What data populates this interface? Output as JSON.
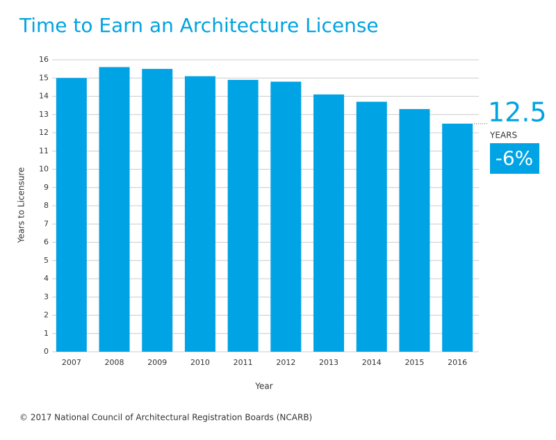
{
  "chart_data": {
    "type": "bar",
    "title": "Time to Earn an Architecture License",
    "x_label": "Year",
    "y_label": "Years to Licensure",
    "categories": [
      "2007",
      "2008",
      "2009",
      "2010",
      "2011",
      "2012",
      "2013",
      "2014",
      "2015",
      "2016"
    ],
    "values": [
      15.0,
      15.6,
      15.5,
      15.1,
      14.9,
      14.8,
      14.1,
      13.7,
      13.3,
      12.5
    ],
    "color": "#00a3e4",
    "ylim": [
      0,
      16
    ],
    "yticks": [
      0,
      1,
      2,
      3,
      4,
      5,
      6,
      7,
      8,
      9,
      10,
      11,
      12,
      13,
      14,
      15,
      16
    ],
    "grid": true,
    "annotation": {
      "value": "12.5",
      "unit": "YEARS",
      "change": "-6%"
    },
    "footer": "© 2017 National Council of Architectural Registration Boards (NCARB)"
  }
}
